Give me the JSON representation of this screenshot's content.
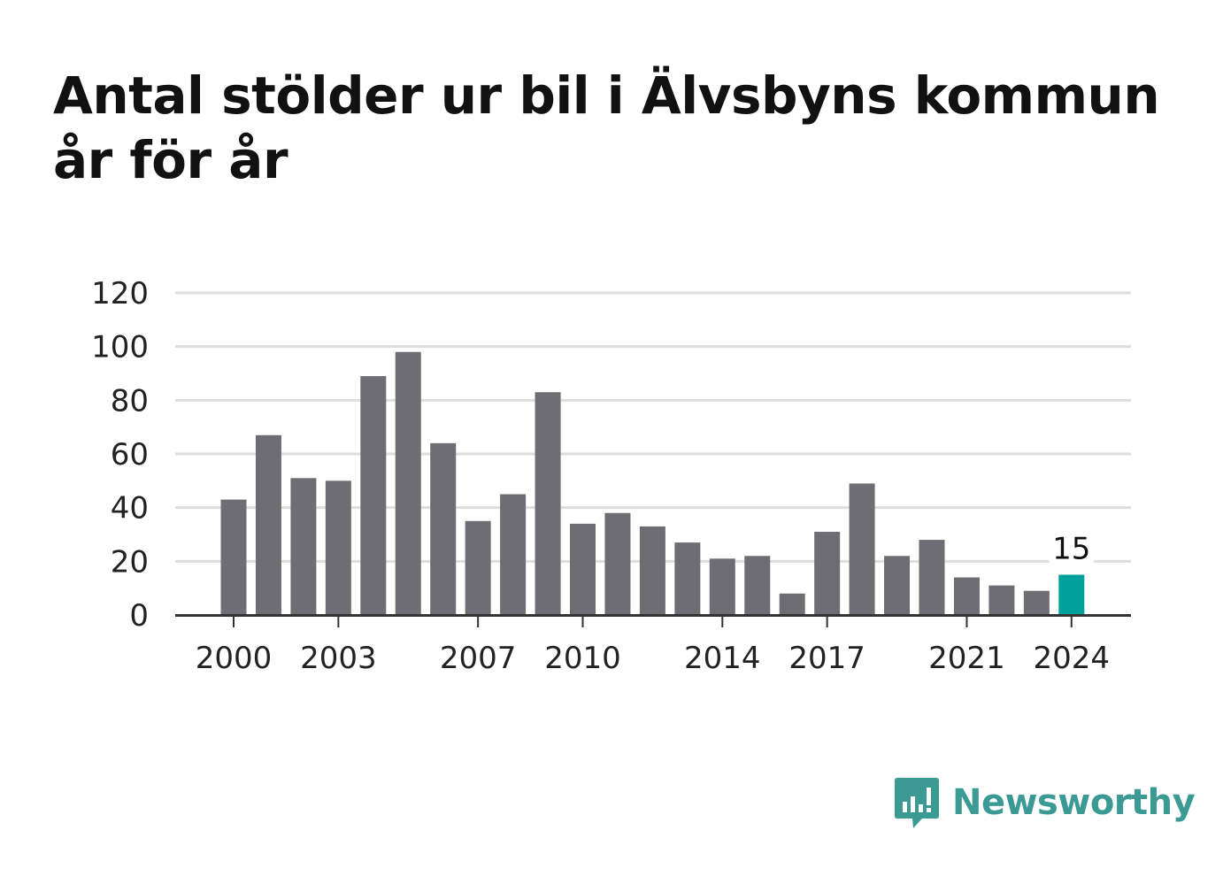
{
  "title": "Antal stölder ur bil i Älvsbyns kommun år för år",
  "brand": {
    "name": "Newsworthy",
    "icon": "newsworthy-logo-icon",
    "color": "#3c9a94"
  },
  "colors": {
    "bar": "#6e6d73",
    "highlight": "#00a19a",
    "grid": "#dedede",
    "axis": "#333333",
    "text": "#222222"
  },
  "chart_data": {
    "type": "bar",
    "title": "Antal stölder ur bil i Älvsbyns kommun år för år",
    "categories": [
      2000,
      2001,
      2002,
      2003,
      2004,
      2005,
      2006,
      2007,
      2008,
      2009,
      2010,
      2011,
      2012,
      2013,
      2014,
      2015,
      2016,
      2017,
      2018,
      2019,
      2020,
      2021,
      2022,
      2023,
      2024
    ],
    "values": [
      43,
      67,
      51,
      50,
      89,
      98,
      64,
      35,
      45,
      83,
      34,
      38,
      33,
      27,
      21,
      22,
      8,
      31,
      49,
      22,
      28,
      14,
      11,
      9,
      15
    ],
    "ylim": [
      0,
      120
    ],
    "yticks": [
      0,
      20,
      40,
      60,
      80,
      100,
      120
    ],
    "xtick_labels": [
      2000,
      2003,
      2007,
      2010,
      2014,
      2017,
      2021,
      2024
    ],
    "highlight": {
      "category": 2024,
      "label": "15"
    },
    "grid": true,
    "xlabel": "",
    "ylabel": ""
  }
}
